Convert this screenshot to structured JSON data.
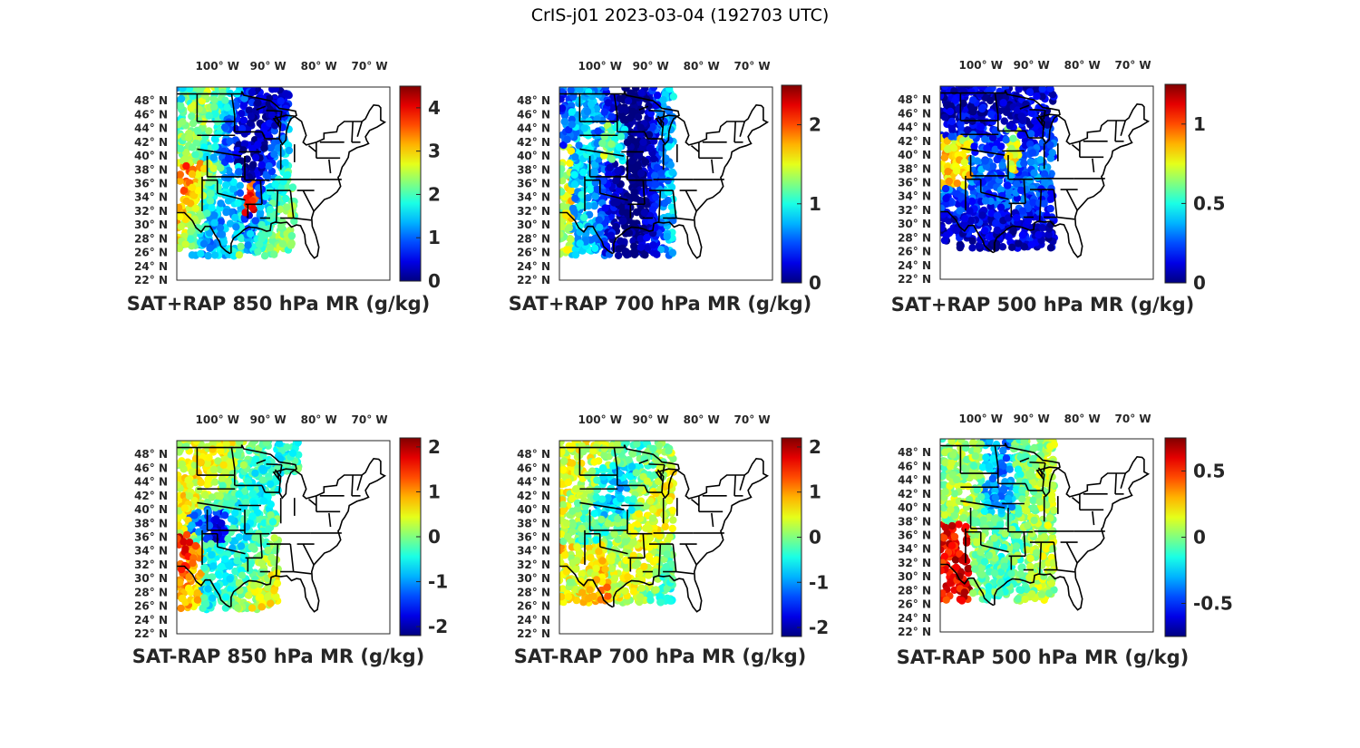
{
  "figure_title": "CrIS-j01 2023-03-04 (192703 UTC)",
  "chart_data": [
    {
      "type": "heatmap",
      "title": "SAT+RAP 850 hPa MR (g/kg)",
      "lon_ticks": [
        "100° W",
        "90° W",
        "80° W",
        "70° W"
      ],
      "lat_ticks": [
        "48° N",
        "46° N",
        "44° N",
        "42° N",
        "40° N",
        "38° N",
        "36° N",
        "34° N",
        "32° N",
        "30° N",
        "28° N",
        "26° N",
        "24° N",
        "22° N"
      ],
      "colorbar": {
        "min": 0,
        "max": 4.5,
        "ticks": [
          0,
          1,
          2,
          3,
          4
        ],
        "tick_labels": [
          "0",
          "1",
          "2",
          "3",
          "4"
        ]
      },
      "colormap": "jet"
    },
    {
      "type": "heatmap",
      "title": "SAT+RAP 700 hPa MR (g/kg)",
      "lon_ticks": [
        "100° W",
        "90° W",
        "80° W",
        "70° W"
      ],
      "lat_ticks": [
        "48° N",
        "46° N",
        "44° N",
        "42° N",
        "40° N",
        "38° N",
        "36° N",
        "34° N",
        "32° N",
        "30° N",
        "28° N",
        "26° N",
        "24° N",
        "22° N"
      ],
      "colorbar": {
        "min": 0,
        "max": 2.5,
        "ticks": [
          0,
          1,
          2
        ],
        "tick_labels": [
          "0",
          "1",
          "2"
        ]
      },
      "colormap": "jet"
    },
    {
      "type": "heatmap",
      "title": "SAT+RAP 500 hPa MR (g/kg)",
      "lon_ticks": [
        "100° W",
        "90° W",
        "80° W",
        "70° W"
      ],
      "lat_ticks": [
        "48° N",
        "46° N",
        "44° N",
        "42° N",
        "40° N",
        "38° N",
        "36° N",
        "34° N",
        "32° N",
        "30° N",
        "28° N",
        "26° N",
        "24° N",
        "22° N"
      ],
      "colorbar": {
        "min": 0,
        "max": 1.25,
        "ticks": [
          0,
          0.5,
          1
        ],
        "tick_labels": [
          "0",
          "0.5",
          "1"
        ]
      },
      "colormap": "jet"
    },
    {
      "type": "heatmap",
      "title": "SAT-RAP 850 hPa MR (g/kg)",
      "lon_ticks": [
        "100° W",
        "90° W",
        "80° W",
        "70° W"
      ],
      "lat_ticks": [
        "48° N",
        "46° N",
        "44° N",
        "42° N",
        "40° N",
        "38° N",
        "36° N",
        "34° N",
        "32° N",
        "30° N",
        "28° N",
        "26° N",
        "24° N",
        "22° N"
      ],
      "colorbar": {
        "min": -2.2,
        "max": 2.2,
        "ticks": [
          -2,
          -1,
          0,
          1,
          2
        ],
        "tick_labels": [
          "-2",
          "-1",
          "0",
          "1",
          "2"
        ]
      },
      "colormap": "jet"
    },
    {
      "type": "heatmap",
      "title": "SAT-RAP 700 hPa MR (g/kg)",
      "lon_ticks": [
        "100° W",
        "90° W",
        "80° W",
        "70° W"
      ],
      "lat_ticks": [
        "48° N",
        "46° N",
        "44° N",
        "42° N",
        "40° N",
        "38° N",
        "36° N",
        "34° N",
        "32° N",
        "30° N",
        "28° N",
        "26° N",
        "24° N",
        "22° N"
      ],
      "colorbar": {
        "min": -2.2,
        "max": 2.2,
        "ticks": [
          -2,
          -1,
          0,
          1,
          2
        ],
        "tick_labels": [
          "-2",
          "-1",
          "0",
          "1",
          "2"
        ]
      },
      "colormap": "jet"
    },
    {
      "type": "heatmap",
      "title": "SAT-RAP 500 hPa MR (g/kg)",
      "lon_ticks": [
        "100° W",
        "90° W",
        "80° W",
        "70° W"
      ],
      "lat_ticks": [
        "48° N",
        "46° N",
        "44° N",
        "42° N",
        "40° N",
        "38° N",
        "36° N",
        "34° N",
        "32° N",
        "30° N",
        "28° N",
        "26° N",
        "24° N",
        "22° N"
      ],
      "colorbar": {
        "min": -0.75,
        "max": 0.75,
        "ticks": [
          -0.5,
          0,
          0.5
        ],
        "tick_labels": [
          "-0.5",
          "0",
          "0.5"
        ]
      },
      "colormap": "jet"
    }
  ]
}
